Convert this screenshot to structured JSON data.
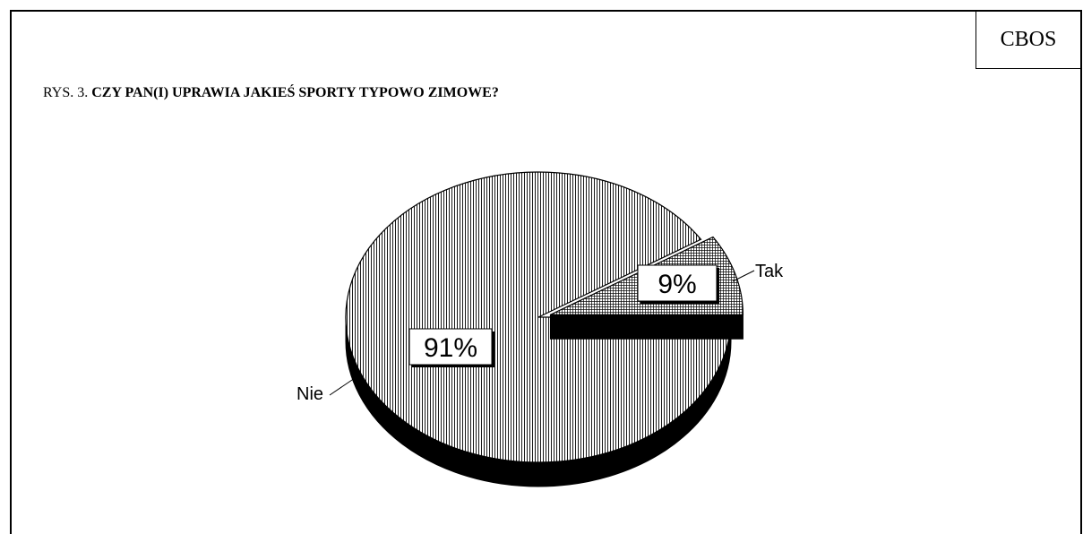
{
  "source": "CBOS",
  "figure_label": "RYS. 3.",
  "chart_data": {
    "type": "pie",
    "title": "CZY PAN(I) UPRAWIA JAKIEŚ SPORTY TYPOWO ZIMOWE?",
    "slices": [
      {
        "label": "Nie",
        "value": 91,
        "value_label": "91%",
        "fill": "vertical-hatch"
      },
      {
        "label": "Tak",
        "value": 9,
        "value_label": "9%",
        "fill": "crosshatch",
        "exploded": true
      }
    ],
    "style": "3d",
    "legend": "none",
    "colors": {
      "outline": "#000000",
      "side": "#000000",
      "background": "#ffffff"
    }
  }
}
